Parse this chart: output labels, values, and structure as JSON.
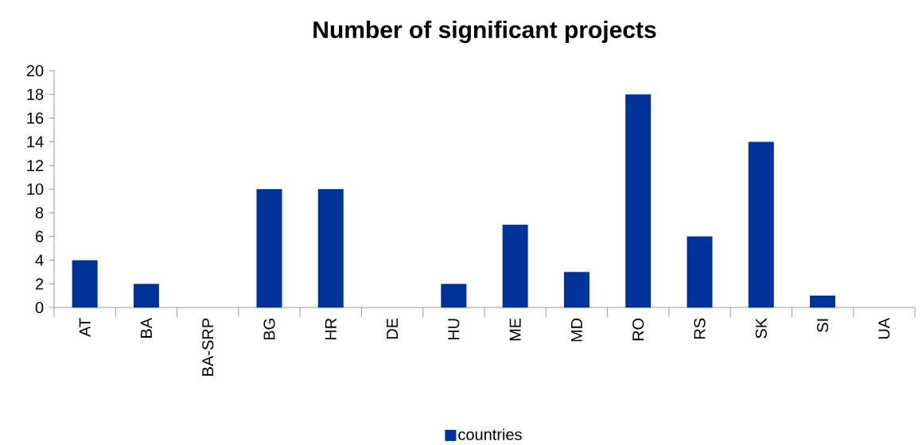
{
  "chart_data": {
    "type": "bar",
    "title": "Number of significant projects",
    "categories": [
      "AT",
      "BA",
      "BA-SRP",
      "BG",
      "HR",
      "DE",
      "HU",
      "ME",
      "MD",
      "RO",
      "RS",
      "SK",
      "SI",
      "UA"
    ],
    "series": [
      {
        "name": "countries",
        "color": "#003399",
        "values": [
          4,
          2,
          0,
          10,
          10,
          0,
          2,
          7,
          3,
          18,
          6,
          14,
          1,
          0
        ]
      }
    ],
    "ylim": [
      0,
      20
    ],
    "yticks": [
      0,
      2,
      4,
      6,
      8,
      10,
      12,
      14,
      16,
      18,
      20
    ],
    "legend": "bottom"
  }
}
